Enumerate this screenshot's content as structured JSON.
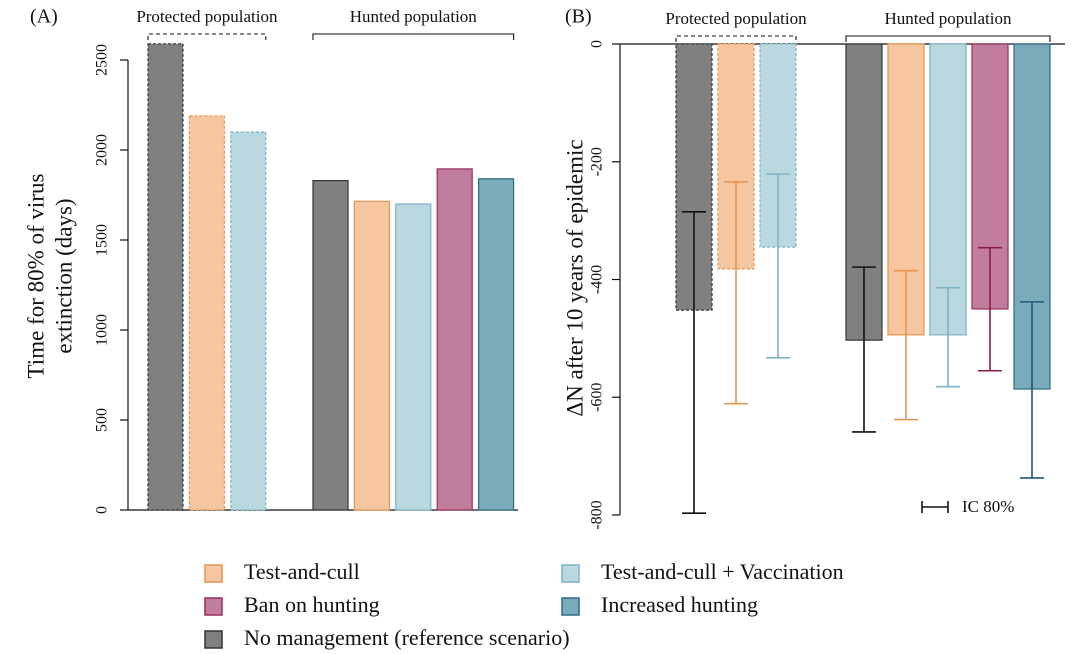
{
  "chart_data": [
    {
      "type": "bar",
      "label": "(A)",
      "ylabel": [
        "Time for 80% of virus",
        "extinction (days)"
      ],
      "groups": [
        "Protected population",
        "Hunted population"
      ],
      "ylim": [
        0,
        2600
      ],
      "yticks": [
        0,
        500,
        1000,
        1500,
        2000,
        2500
      ],
      "series": [
        {
          "values": [
            2590,
            1830
          ]
        },
        {
          "values": [
            2190,
            1715
          ]
        },
        {
          "values": [
            2100,
            1700
          ]
        },
        {
          "values": [
            null,
            1895
          ]
        },
        {
          "values": [
            null,
            1840
          ]
        }
      ]
    },
    {
      "type": "bar",
      "label": "(B)",
      "ylabel": "ΔN  after 10 years of epidemic",
      "groups": [
        "Protected population",
        "Hunted population"
      ],
      "ylim": [
        -800,
        0
      ],
      "yticks": [
        -800,
        -600,
        -400,
        -200,
        0
      ],
      "error_legend": "IC 80%",
      "series": [
        {
          "values": [
            -452,
            -503
          ],
          "lower": [
            -797,
            -659
          ],
          "upper": [
            -285,
            -379
          ],
          "color": "#111111"
        },
        {
          "values": [
            -382,
            -494
          ],
          "lower": [
            -611,
            -638
          ],
          "upper": [
            -234,
            -385
          ],
          "color": "#e8944f"
        },
        {
          "values": [
            -345,
            -494
          ],
          "lower": [
            -533,
            -582
          ],
          "upper": [
            -221,
            -414
          ],
          "color": "#7fb3c3"
        },
        {
          "values": [
            null,
            -450
          ],
          "lower": [
            null,
            -555
          ],
          "upper": [
            null,
            -346
          ],
          "color": "#8b1a4a"
        },
        {
          "values": [
            null,
            -586
          ],
          "lower": [
            null,
            -737
          ],
          "upper": [
            null,
            -438
          ],
          "color": "#1f5a78"
        }
      ]
    }
  ],
  "legend": [
    {
      "name": "No management (reference scenario)",
      "color": "#808080",
      "edge": "#333333"
    },
    {
      "name": "Test-and-cull",
      "color": "#f5c6a0",
      "edge": "#e8944f"
    },
    {
      "name": "Test-and-cull + Vaccination",
      "color": "#b9d8df",
      "edge": "#7fb3c3"
    },
    {
      "name": "Ban on hunting",
      "color": "#c07e9c",
      "edge": "#9a2d5c"
    },
    {
      "name": "Increased hunting",
      "color": "#7aabbb",
      "edge": "#2c6b86"
    }
  ]
}
